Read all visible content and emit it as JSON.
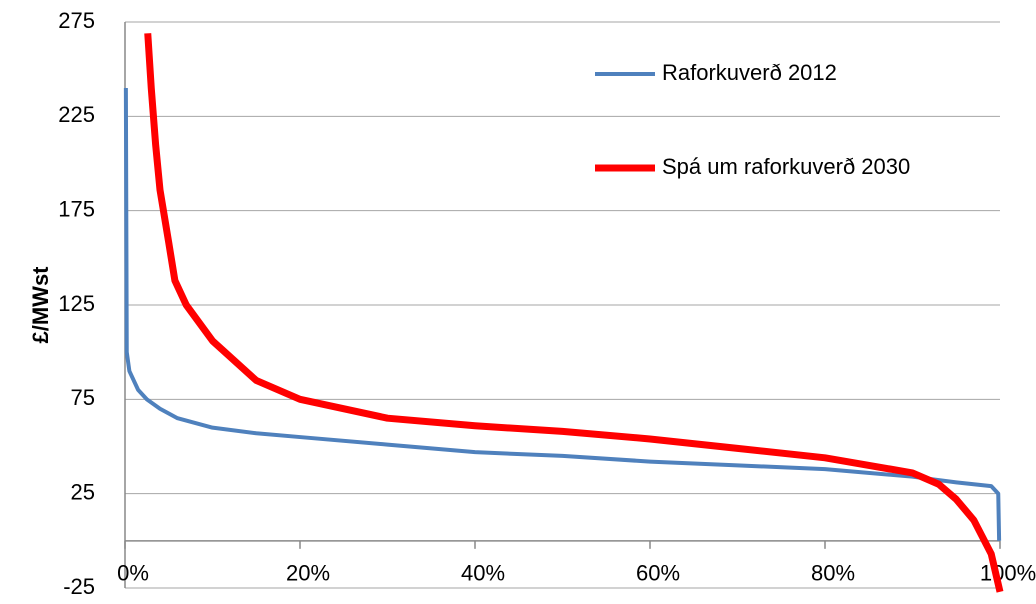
{
  "chart_data": {
    "type": "line",
    "ylabel": "£/MWst",
    "ylim": [
      -25,
      275
    ],
    "yticks": [
      -25,
      25,
      75,
      125,
      175,
      225,
      275
    ],
    "xlim": [
      0,
      100
    ],
    "xticks": [
      {
        "value": 0,
        "label": "0%"
      },
      {
        "value": 20,
        "label": "20%"
      },
      {
        "value": 40,
        "label": "40%"
      },
      {
        "value": 60,
        "label": "60%"
      },
      {
        "value": 80,
        "label": "80%"
      },
      {
        "value": 100,
        "label": "100%"
      }
    ],
    "grid": true,
    "legend": "upper right",
    "series": [
      {
        "name": "Raforkuverð 2012",
        "color": "#4f81bd",
        "x": [
          0.1,
          0.2,
          0.5,
          1.5,
          2.5,
          4,
          6,
          10,
          15,
          20,
          30,
          40,
          50,
          60,
          70,
          80,
          90,
          95,
          99,
          99.8,
          99.9
        ],
        "values": [
          240,
          100,
          90,
          80,
          75,
          70,
          65,
          60,
          57,
          55,
          51,
          47,
          45,
          42,
          40,
          38,
          34,
          31,
          29,
          25,
          0
        ]
      },
      {
        "name": "Spá um raforkuverð 2030",
        "color": "#ff0000",
        "x": [
          2.6,
          3,
          3.5,
          4,
          5,
          5.7,
          7,
          10,
          15,
          20,
          30,
          40,
          50,
          60,
          70,
          80,
          90,
          93,
          95,
          97,
          99,
          100
        ],
        "values": [
          269,
          240,
          210,
          186,
          158,
          138,
          125,
          106,
          85,
          75,
          65,
          61,
          58,
          54,
          49,
          44,
          36,
          30,
          22,
          11,
          -7,
          -27
        ]
      }
    ]
  }
}
